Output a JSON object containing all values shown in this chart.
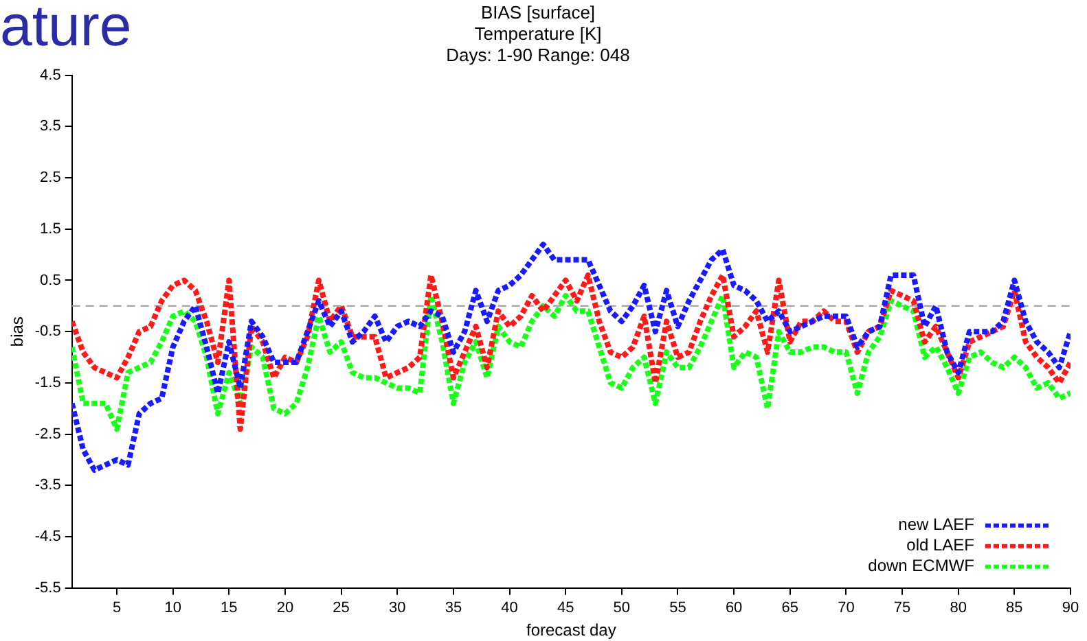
{
  "chart_data": {
    "type": "line",
    "title": "BIAS [surface]",
    "subtitle": "Temperature [K]\nDays: 1-90 Range: 048",
    "xlabel": "forecast day",
    "ylabel": "bias",
    "annotations": [
      "ature"
    ],
    "xlim": [
      1,
      90
    ],
    "xticks": [
      5,
      10,
      15,
      20,
      25,
      30,
      35,
      40,
      45,
      50,
      55,
      60,
      65,
      70,
      75,
      80,
      85,
      90
    ],
    "ylim": [
      -5.5,
      4.5
    ],
    "yticks": [
      -5.5,
      -4.5,
      -3.5,
      -2.5,
      -1.5,
      -0.5,
      0.5,
      1.5,
      2.5,
      3.5,
      4.5
    ],
    "x": [
      1,
      2,
      3,
      4,
      5,
      6,
      7,
      8,
      9,
      10,
      11,
      12,
      13,
      14,
      15,
      16,
      17,
      18,
      19,
      20,
      21,
      22,
      23,
      24,
      25,
      26,
      27,
      28,
      29,
      30,
      31,
      32,
      33,
      34,
      35,
      36,
      37,
      38,
      39,
      40,
      41,
      42,
      43,
      44,
      45,
      46,
      47,
      48,
      49,
      50,
      51,
      52,
      53,
      54,
      55,
      56,
      57,
      58,
      59,
      60,
      61,
      62,
      63,
      64,
      65,
      66,
      67,
      68,
      69,
      70,
      71,
      72,
      73,
      74,
      75,
      76,
      77,
      78,
      79,
      80,
      81,
      82,
      83,
      84,
      85,
      86,
      87,
      88,
      89,
      90
    ],
    "series": [
      {
        "name": "new LAEF",
        "color": "#1a1aff",
        "values": [
          -1.9,
          -2.8,
          -3.2,
          -3.1,
          -3.0,
          -3.1,
          -2.1,
          -1.9,
          -1.8,
          -0.8,
          -0.3,
          0.0,
          -0.8,
          -1.7,
          -0.7,
          -1.6,
          -0.3,
          -0.6,
          -1.1,
          -1.1,
          -1.1,
          -0.5,
          0.1,
          -0.4,
          -0.1,
          -0.7,
          -0.5,
          -0.2,
          -0.7,
          -0.4,
          -0.3,
          -0.4,
          -0.1,
          -0.2,
          -0.9,
          -0.5,
          0.3,
          -0.3,
          0.3,
          0.4,
          0.6,
          0.9,
          1.2,
          0.9,
          0.9,
          0.9,
          0.9,
          0.4,
          -0.1,
          -0.3,
          0.0,
          0.4,
          -0.5,
          0.3,
          -0.4,
          0.1,
          0.5,
          0.9,
          1.1,
          0.4,
          0.3,
          0.1,
          -0.3,
          -0.1,
          -0.5,
          -0.4,
          -0.3,
          -0.2,
          -0.2,
          -0.2,
          -0.8,
          -0.5,
          -0.4,
          0.6,
          0.6,
          0.6,
          -0.4,
          0.0,
          -0.9,
          -1.3,
          -0.5,
          -0.5,
          -0.5,
          -0.3,
          0.5,
          -0.3,
          -0.7,
          -0.9,
          -1.2,
          -0.5
        ]
      },
      {
        "name": "old LAEF",
        "color": "#ff1a1a",
        "values": [
          -0.3,
          -0.9,
          -1.2,
          -1.3,
          -1.4,
          -1.0,
          -0.5,
          -0.4,
          0.1,
          0.4,
          0.5,
          0.3,
          -0.3,
          -1.1,
          0.5,
          -2.4,
          -0.4,
          -0.7,
          -1.4,
          -1.0,
          -1.1,
          -0.6,
          0.5,
          -0.3,
          0.0,
          -0.6,
          -0.6,
          -0.6,
          -1.4,
          -1.3,
          -1.2,
          -1.0,
          0.6,
          -0.3,
          -1.4,
          -0.9,
          -0.4,
          -1.2,
          -0.1,
          -0.4,
          -0.2,
          0.2,
          -0.1,
          0.2,
          0.5,
          0.1,
          0.6,
          -0.3,
          -0.9,
          -1.0,
          -0.8,
          -0.2,
          -1.5,
          -0.3,
          -1.0,
          -0.9,
          -0.3,
          0.2,
          0.6,
          -0.6,
          -0.4,
          -0.1,
          -0.9,
          0.5,
          -0.7,
          -0.3,
          -0.3,
          -0.1,
          -0.3,
          -0.3,
          -0.9,
          -0.5,
          -0.4,
          0.3,
          0.2,
          0.1,
          -0.7,
          -0.4,
          -0.9,
          -1.4,
          -0.7,
          -0.6,
          -0.5,
          -0.4,
          0.3,
          -0.7,
          -1.0,
          -1.2,
          -1.5,
          -1.1
        ]
      },
      {
        "name": "down ECMWF",
        "color": "#1aff1a",
        "values": [
          -0.8,
          -1.9,
          -1.9,
          -1.9,
          -2.4,
          -1.3,
          -1.2,
          -1.1,
          -0.7,
          -0.2,
          -0.1,
          -0.3,
          -1.0,
          -2.1,
          -1.3,
          -1.9,
          -0.8,
          -1.0,
          -2.0,
          -2.1,
          -1.9,
          -1.2,
          -0.2,
          -0.9,
          -0.7,
          -1.3,
          -1.4,
          -1.4,
          -1.5,
          -1.6,
          -1.6,
          -1.7,
          0.2,
          -0.7,
          -1.9,
          -1.1,
          -0.7,
          -1.4,
          -0.4,
          -0.7,
          -0.8,
          -0.3,
          0.0,
          -0.2,
          0.2,
          -0.1,
          -0.1,
          -0.8,
          -1.5,
          -1.6,
          -1.2,
          -1.0,
          -1.9,
          -0.9,
          -1.2,
          -1.2,
          -0.8,
          -0.3,
          0.2,
          -1.2,
          -0.9,
          -1.0,
          -2.0,
          -0.5,
          -0.9,
          -0.9,
          -0.8,
          -0.8,
          -0.9,
          -0.9,
          -1.7,
          -0.9,
          -0.6,
          0.1,
          0.0,
          -0.1,
          -1.0,
          -0.8,
          -1.2,
          -1.7,
          -1.0,
          -0.9,
          -1.1,
          -1.2,
          -1.0,
          -1.2,
          -1.6,
          -1.5,
          -1.8,
          -1.7
        ]
      }
    ],
    "ref_lines": [
      {
        "axis": "y",
        "value": 0,
        "color": "#999999",
        "line_style": "dashed"
      }
    ],
    "legend": "bottom right",
    "line_style": "dotted",
    "marker": "none"
  }
}
